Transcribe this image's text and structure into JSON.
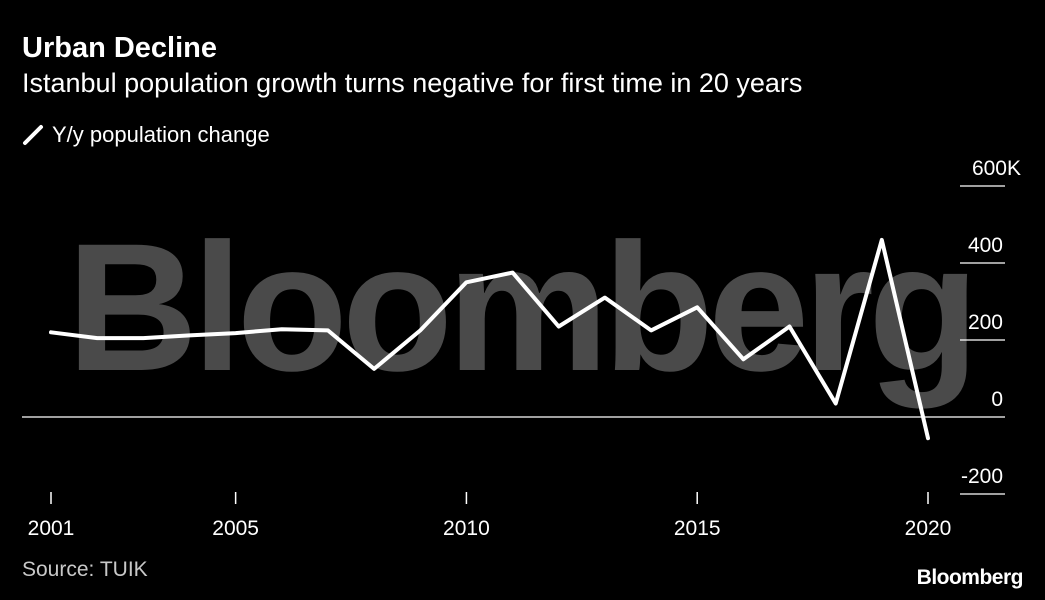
{
  "header": {
    "title": "Urban Decline",
    "subtitle": "Istanbul population growth turns negative for first time in 20 years"
  },
  "legend": {
    "label": "Y/y population change",
    "icon": "slash-line-icon"
  },
  "watermark": "Bloomberg",
  "source": "Source: TUIK",
  "brand": "Bloomberg",
  "colors": {
    "background": "#000000",
    "line": "#ffffff",
    "axis": "#ffffff",
    "watermark": "#4a4a4a",
    "tick_text": "#ffffff"
  },
  "chart_data": {
    "type": "line",
    "title": "Urban Decline",
    "subtitle": "Istanbul population growth turns negative for first time in 20 years",
    "xlabel": "",
    "ylabel": "",
    "x": [
      2001,
      2002,
      2003,
      2004,
      2005,
      2006,
      2007,
      2008,
      2009,
      2010,
      2011,
      2012,
      2013,
      2014,
      2015,
      2016,
      2017,
      2018,
      2019,
      2020
    ],
    "series": [
      {
        "name": "Y/y population change",
        "values": [
          220,
          205,
          205,
          212,
          218,
          228,
          225,
          125,
          225,
          350,
          375,
          235,
          310,
          225,
          285,
          150,
          235,
          35,
          460,
          -55
        ]
      }
    ],
    "xlim": [
      2001,
      2020
    ],
    "ylim": [
      -200,
      600
    ],
    "y_ticks": [
      600,
      400,
      200,
      0,
      -200
    ],
    "y_tick_labels": [
      "600K",
      "400",
      "200",
      "0",
      "-200"
    ],
    "x_ticks": [
      2001,
      2005,
      2010,
      2015,
      2020
    ],
    "x_tick_labels": [
      "2001",
      "2005",
      "2010",
      "2015",
      "2020"
    ],
    "legend_position": "top-left"
  }
}
